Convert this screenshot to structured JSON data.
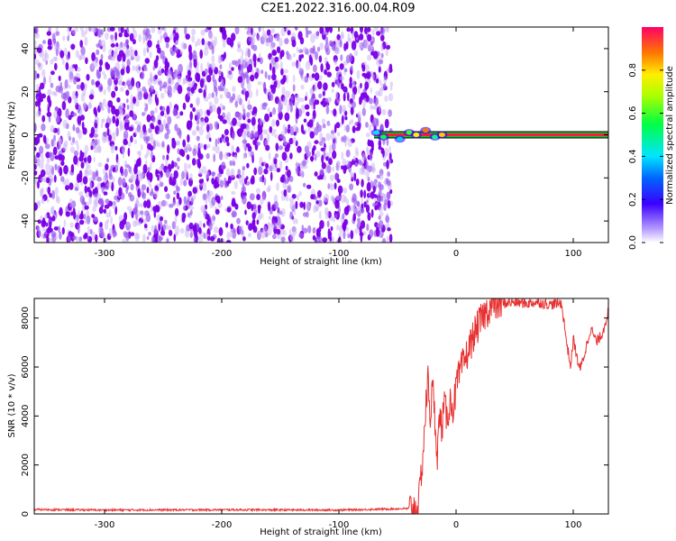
{
  "title": "C2E1.2022.316.00.04.R09",
  "chart_data": [
    {
      "type": "heatmap",
      "xlabel": "Height of straight line (km)",
      "ylabel": "Frequency (Hz)",
      "xlim": [
        -360,
        130
      ],
      "ylim": [
        -50,
        50
      ],
      "x_ticks": [
        -300,
        -200,
        -100,
        0,
        100
      ],
      "y_ticks": [
        40,
        20,
        0,
        -20,
        -40
      ],
      "noise_region_x": [
        -360,
        -55
      ],
      "signal_line_frequency": 0,
      "signal_line_start_x": -70,
      "colorbar": {
        "label": "Normalized spectral amplitude",
        "range": [
          0,
          1
        ],
        "ticks": [
          "0.0",
          "0.2",
          "0.4",
          "0.6",
          "0.8"
        ]
      },
      "colors": {
        "noise": "#7b00e8",
        "signal_line": "#ff1a3c",
        "line_outline": "#00cc33"
      }
    },
    {
      "type": "line",
      "xlabel": "Height of straight line (km)",
      "ylabel": "SNR (10 * v/v)",
      "xlim": [
        -360,
        130
      ],
      "ylim": [
        0,
        8800
      ],
      "x_ticks": [
        -300,
        -200,
        -100,
        0,
        100
      ],
      "y_ticks": [
        0,
        2000,
        4000,
        6000,
        8000
      ],
      "series": [
        {
          "color": "#e83030",
          "x": [
            -360,
            -300,
            -200,
            -100,
            -40,
            -32,
            -30,
            -28,
            -26,
            -24,
            -22,
            -20,
            -18,
            -16,
            -14,
            -12,
            -10,
            -8,
            -5,
            -2,
            0,
            5,
            10,
            15,
            20,
            25,
            30,
            40,
            50,
            60,
            70,
            80,
            90,
            95,
            98,
            100,
            103,
            106,
            110,
            115,
            120,
            125,
            130
          ],
          "y": [
            180,
            160,
            170,
            160,
            220,
            300,
            1500,
            2600,
            4200,
            5500,
            4000,
            5200,
            3800,
            2500,
            4000,
            3500,
            4500,
            3900,
            4600,
            4300,
            5200,
            6000,
            6600,
            7300,
            7800,
            8200,
            8500,
            8600,
            8650,
            8600,
            8650,
            8550,
            8600,
            6800,
            6000,
            7200,
            6400,
            5900,
            6600,
            7600,
            7000,
            7400,
            8300
          ]
        }
      ]
    }
  ]
}
